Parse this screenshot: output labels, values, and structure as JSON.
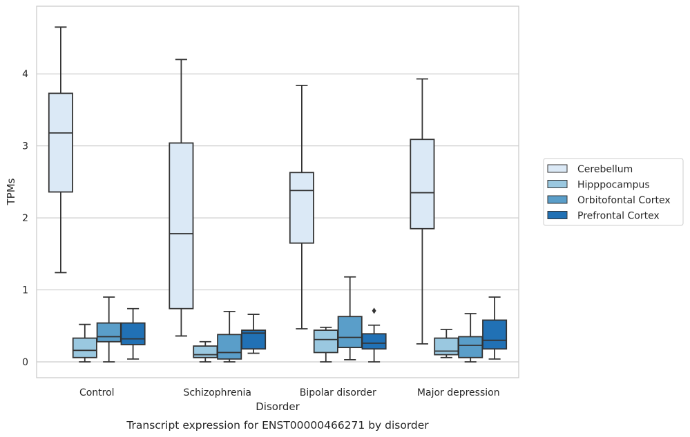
{
  "chart_data": {
    "type": "boxplot",
    "caption": "Transcript expression for ENST00000466271 by disorder",
    "xlabel": "Disorder",
    "ylabel": "TPMs",
    "ylim": [
      -0.22,
      4.94
    ],
    "yticks": [
      0,
      1,
      2,
      3,
      4
    ],
    "grid": "horizontal",
    "legend_position": "right",
    "categories": [
      "Control",
      "Schizophrenia",
      "Bipolar disorder",
      "Major depression"
    ],
    "series": [
      {
        "name": "Cerebellum",
        "color": "#dbe9f6",
        "boxes": [
          {
            "whislo": 1.24,
            "q1": 2.36,
            "med": 3.18,
            "q3": 3.73,
            "whishi": 4.65,
            "fliers": []
          },
          {
            "whislo": 0.36,
            "q1": 0.74,
            "med": 1.78,
            "q3": 3.04,
            "whishi": 4.2,
            "fliers": []
          },
          {
            "whislo": 0.46,
            "q1": 1.65,
            "med": 2.38,
            "q3": 2.63,
            "whishi": 3.84,
            "fliers": []
          },
          {
            "whislo": 0.25,
            "q1": 1.85,
            "med": 2.35,
            "q3": 3.09,
            "whishi": 3.93,
            "fliers": []
          }
        ]
      },
      {
        "name": "Hipppocampus",
        "color": "#9ac8e0",
        "boxes": [
          {
            "whislo": 0.0,
            "q1": 0.06,
            "med": 0.16,
            "q3": 0.33,
            "whishi": 0.52,
            "fliers": []
          },
          {
            "whislo": 0.0,
            "q1": 0.06,
            "med": 0.1,
            "q3": 0.22,
            "whishi": 0.28,
            "fliers": []
          },
          {
            "whislo": 0.0,
            "q1": 0.13,
            "med": 0.31,
            "q3": 0.44,
            "whishi": 0.48,
            "fliers": []
          },
          {
            "whislo": 0.06,
            "q1": 0.1,
            "med": 0.15,
            "q3": 0.33,
            "whishi": 0.45,
            "fliers": []
          }
        ]
      },
      {
        "name": "Orbitofontal Cortex",
        "color": "#5a9ec9",
        "boxes": [
          {
            "whislo": 0.0,
            "q1": 0.28,
            "med": 0.35,
            "q3": 0.54,
            "whishi": 0.9,
            "fliers": []
          },
          {
            "whislo": 0.0,
            "q1": 0.04,
            "med": 0.13,
            "q3": 0.38,
            "whishi": 0.7,
            "fliers": []
          },
          {
            "whislo": 0.03,
            "q1": 0.2,
            "med": 0.34,
            "q3": 0.63,
            "whishi": 1.18,
            "fliers": []
          },
          {
            "whislo": 0.0,
            "q1": 0.06,
            "med": 0.23,
            "q3": 0.35,
            "whishi": 0.67,
            "fliers": []
          }
        ]
      },
      {
        "name": "Prefrontal Cortex",
        "color": "#2171b5",
        "boxes": [
          {
            "whislo": 0.04,
            "q1": 0.24,
            "med": 0.32,
            "q3": 0.54,
            "whishi": 0.74,
            "fliers": []
          },
          {
            "whislo": 0.12,
            "q1": 0.18,
            "med": 0.4,
            "q3": 0.44,
            "whishi": 0.66,
            "fliers": []
          },
          {
            "whislo": 0.0,
            "q1": 0.18,
            "med": 0.26,
            "q3": 0.39,
            "whishi": 0.51,
            "fliers": [
              0.71
            ]
          },
          {
            "whislo": 0.04,
            "q1": 0.18,
            "med": 0.3,
            "q3": 0.58,
            "whishi": 0.9,
            "fliers": []
          }
        ]
      }
    ]
  }
}
